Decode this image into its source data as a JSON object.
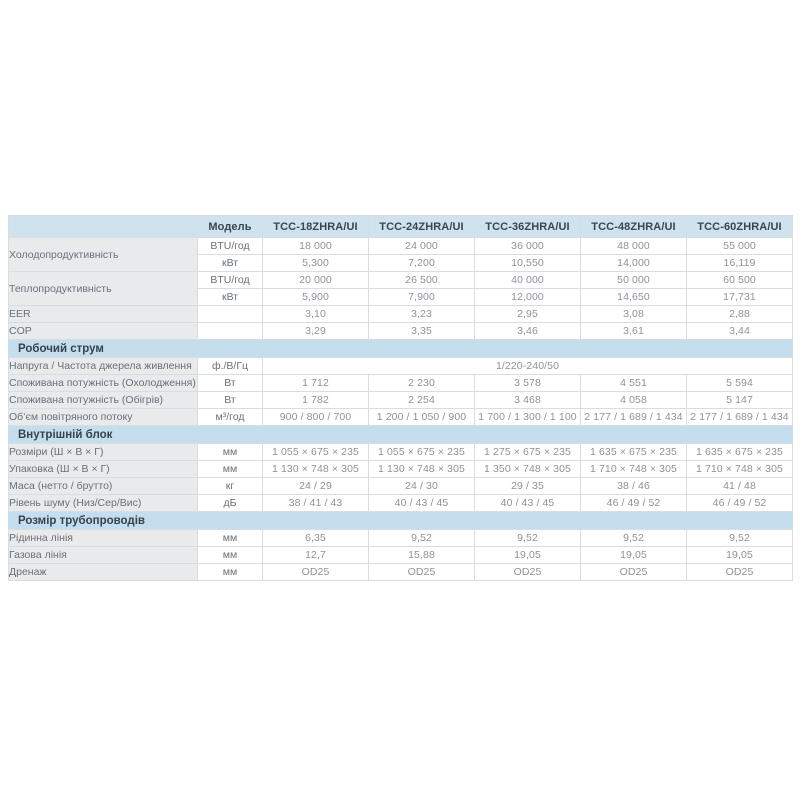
{
  "colors": {
    "header_bg": "#cfe3ef",
    "section_bg": "#c5deee",
    "label_bg": "#e9eaec",
    "border": "#dadde0",
    "dark_text": "#3a454f",
    "label_text": "#6a7078",
    "value_text": "#8d929a"
  },
  "header": {
    "model_label": "Модель",
    "models": [
      "TCC-18ZHRA/UI",
      "TCC-24ZHRA/UI",
      "TCC-36ZHRA/UI",
      "TCC-48ZHRA/UI",
      "TCC-60ZHRA/UI"
    ]
  },
  "rows": [
    {
      "type": "data",
      "label": "Холодопродуктивність",
      "label_rowspan": 2,
      "unit": "BTU/год",
      "values": [
        "18 000",
        "24 000",
        "36 000",
        "48 000",
        "55 000"
      ]
    },
    {
      "type": "cont",
      "unit": "кВт",
      "values": [
        "5,300",
        "7,200",
        "10,550",
        "14,000",
        "16,119"
      ]
    },
    {
      "type": "data",
      "label": "Теплопродуктивність",
      "label_rowspan": 2,
      "unit": "BTU/год",
      "values": [
        "20 000",
        "26 500",
        "40 000",
        "50 000",
        "60 500"
      ]
    },
    {
      "type": "cont",
      "unit": "кВт",
      "values": [
        "5,900",
        "7,900",
        "12,000",
        "14,650",
        "17,731"
      ]
    },
    {
      "type": "data",
      "label": "EER",
      "unit": "",
      "values": [
        "3,10",
        "3,23",
        "2,95",
        "3,08",
        "2,88"
      ]
    },
    {
      "type": "data",
      "label": "COP",
      "unit": "",
      "values": [
        "3,29",
        "3,35",
        "3,46",
        "3,61",
        "3,44"
      ]
    },
    {
      "type": "section",
      "label": "Робочий струм"
    },
    {
      "type": "span",
      "label": "Напруга / Частота джерела живлення",
      "unit": "ф./В/Гц",
      "value": "1/220-240/50"
    },
    {
      "type": "data",
      "label": "Споживана потужність (Охолодження)",
      "unit": "Вт",
      "values": [
        "1 712",
        "2 230",
        "3 578",
        "4 551",
        "5 594"
      ]
    },
    {
      "type": "data",
      "label": "Споживана потужність (Обігрів)",
      "unit": "Вт",
      "values": [
        "1 782",
        "2 254",
        "3 468",
        "4 058",
        "5 147"
      ]
    },
    {
      "type": "data",
      "label": "Об’єм повітряного потоку",
      "unit": "м³/год",
      "values": [
        "900 / 800 / 700",
        "1 200 / 1 050 / 900",
        "1 700 / 1 300 / 1 100",
        "2 177 / 1 689 / 1 434",
        "2 177 / 1 689 / 1 434"
      ]
    },
    {
      "type": "section",
      "label": "Внутрішній блок"
    },
    {
      "type": "data",
      "label": "Розміри (Ш × В × Г)",
      "unit": "мм",
      "values": [
        "1 055 × 675 × 235",
        "1 055 × 675 × 235",
        "1 275 × 675 × 235",
        "1 635 × 675 × 235",
        "1 635 × 675 × 235"
      ]
    },
    {
      "type": "data",
      "label": "Упаковка (Ш × В × Г)",
      "unit": "мм",
      "values": [
        "1 130 × 748 × 305",
        "1 130 × 748 × 305",
        "1 350 × 748 × 305",
        "1 710 × 748 × 305",
        "1 710 × 748 × 305"
      ]
    },
    {
      "type": "data",
      "label": "Маса (нетто / брутто)",
      "unit": "кг",
      "values": [
        "24 / 29",
        "24 / 30",
        "29 / 35",
        "38 / 46",
        "41 / 48"
      ]
    },
    {
      "type": "data",
      "label": "Рівень шуму (Низ/Сер/Вис)",
      "unit": "дБ",
      "values": [
        "38 / 41 / 43",
        "40 / 43 / 45",
        "40 / 43 / 45",
        "46 / 49 / 52",
        "46 / 49 / 52"
      ]
    },
    {
      "type": "section",
      "label": "Розмір трубопроводів"
    },
    {
      "type": "data",
      "label": "Рідинна лінія",
      "unit": "мм",
      "values": [
        "6,35",
        "9,52",
        "9,52",
        "9,52",
        "9,52"
      ]
    },
    {
      "type": "data",
      "label": "Газова лінія",
      "unit": "мм",
      "values": [
        "12,7",
        "15,88",
        "19,05",
        "19,05",
        "19,05"
      ]
    },
    {
      "type": "data",
      "label": "Дренаж",
      "unit": "мм",
      "values": [
        "OD25",
        "OD25",
        "OD25",
        "OD25",
        "OD25"
      ]
    }
  ]
}
